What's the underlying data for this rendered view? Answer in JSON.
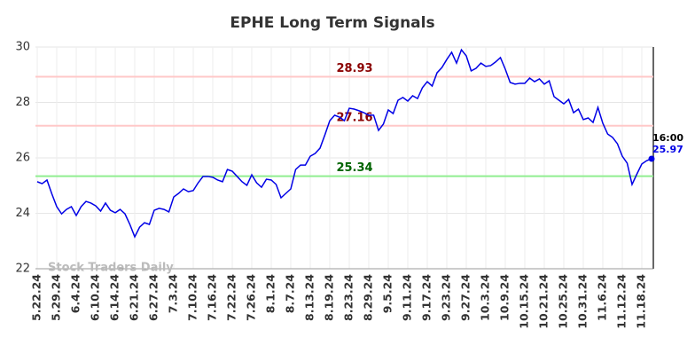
{
  "chart_data": {
    "type": "line",
    "title": "EPHE Long Term Signals",
    "watermark": "Stock Traders Daily",
    "time_label": "16:00",
    "color": "#0000e6",
    "categories": [
      "5.22.24",
      null,
      null,
      null,
      "5.29.24",
      null,
      null,
      null,
      "6.4.24",
      null,
      null,
      null,
      "6.10.24",
      null,
      null,
      null,
      "6.14.24",
      null,
      null,
      null,
      "6.21.24",
      null,
      null,
      null,
      "6.27.24",
      null,
      null,
      null,
      "7.3.24",
      null,
      null,
      null,
      "7.10.24",
      null,
      null,
      null,
      "7.16.24",
      null,
      null,
      null,
      "7.22.24",
      null,
      null,
      null,
      "7.26.24",
      null,
      null,
      null,
      "8.1.24",
      null,
      null,
      null,
      "8.7.24",
      null,
      null,
      null,
      "8.13.24",
      null,
      null,
      null,
      "8.19.24",
      null,
      null,
      null,
      "8.23.24",
      null,
      null,
      null,
      "8.29.24",
      null,
      null,
      null,
      "9.5.24",
      null,
      null,
      null,
      "9.11.24",
      null,
      null,
      null,
      "9.17.24",
      null,
      null,
      null,
      "9.23.24",
      null,
      null,
      null,
      "9.27.24",
      null,
      null,
      null,
      "10.3.24",
      null,
      null,
      null,
      "10.9.24",
      null,
      null,
      null,
      "10.15.24",
      null,
      null,
      null,
      "10.21.24",
      null,
      null,
      null,
      "10.25.24",
      null,
      null,
      null,
      "10.31.24",
      null,
      null,
      null,
      "11.6.24",
      null,
      null,
      null,
      "11.12.24",
      null,
      null,
      null,
      "11.18.24",
      null,
      null
    ],
    "values": [
      25.14,
      25.07,
      25.2,
      24.7,
      24.24,
      23.98,
      24.14,
      24.24,
      23.92,
      24.24,
      24.43,
      24.37,
      24.27,
      24.08,
      24.37,
      24.11,
      24.02,
      24.14,
      23.98,
      23.6,
      23.15,
      23.5,
      23.66,
      23.6,
      24.11,
      24.18,
      24.14,
      24.05,
      24.59,
      24.72,
      24.88,
      24.78,
      24.82,
      25.1,
      25.33,
      25.33,
      25.3,
      25.2,
      25.14,
      25.58,
      25.52,
      25.33,
      25.14,
      25.01,
      25.39,
      25.1,
      24.94,
      25.23,
      25.2,
      25.04,
      24.56,
      24.72,
      24.88,
      25.58,
      25.74,
      25.74,
      26.06,
      26.16,
      26.35,
      26.83,
      27.34,
      27.54,
      27.47,
      27.34,
      27.79,
      27.76,
      27.7,
      27.63,
      27.54,
      27.54,
      26.99,
      27.22,
      27.73,
      27.6,
      28.08,
      28.18,
      28.05,
      28.24,
      28.14,
      28.53,
      28.75,
      28.59,
      29.07,
      29.26,
      29.55,
      29.81,
      29.42,
      29.9,
      29.68,
      29.14,
      29.23,
      29.42,
      29.3,
      29.33,
      29.46,
      29.62,
      29.2,
      28.72,
      28.66,
      28.69,
      28.69,
      28.88,
      28.75,
      28.85,
      28.66,
      28.78,
      28.21,
      28.08,
      27.95,
      28.11,
      27.63,
      27.76,
      27.38,
      27.44,
      27.28,
      27.82,
      27.25,
      26.86,
      26.74,
      26.51,
      26.06,
      25.81,
      25.04,
      25.42,
      25.78,
      25.9,
      25.97
    ],
    "reference_lines": [
      {
        "value": 28.93,
        "color": "#ffc8c8",
        "label_color": "#8b0000"
      },
      {
        "value": 27.16,
        "color": "#ffc8c8",
        "label_color": "#8b0000"
      },
      {
        "value": 25.34,
        "color": "#90ee90",
        "label_color": "#006400"
      }
    ],
    "ylim": [
      22,
      30
    ],
    "yticks": [
      22,
      24,
      26,
      28,
      30
    ],
    "grid": true
  }
}
